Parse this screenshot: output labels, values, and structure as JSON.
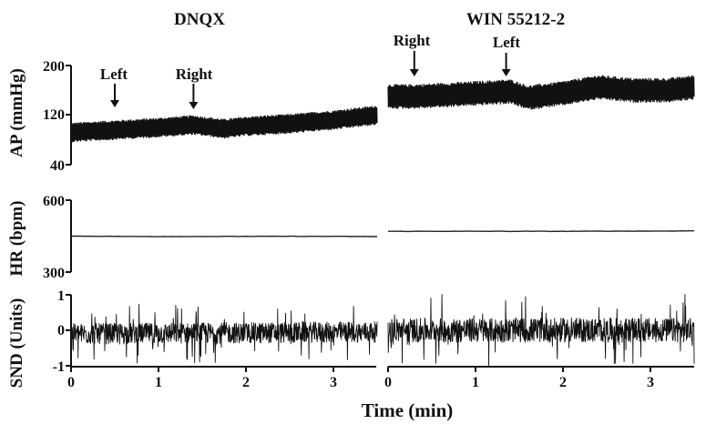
{
  "chart_data": {
    "type": "line",
    "xlabel": "Time (min)",
    "xlim": [
      0,
      3.5
    ],
    "x_ticks": [
      "0",
      "1",
      "2",
      "3"
    ],
    "columns": [
      {
        "title": "DNQX"
      },
      {
        "title": "WIN 55212-2"
      }
    ],
    "rows": [
      {
        "ylabel": "AP (mmHg)",
        "ylim": [
          40,
          200
        ],
        "y_ticks": [
          "200",
          "120",
          "40"
        ]
      },
      {
        "ylabel": "HR (bpm)",
        "ylim": [
          300,
          600
        ],
        "y_ticks": [
          "600",
          "300"
        ]
      },
      {
        "ylabel": "SND (Units)",
        "ylim": [
          -1,
          1.1
        ],
        "y_ticks": [
          "1",
          "0",
          "-1"
        ]
      }
    ],
    "series": [
      {
        "panel": "AP / DNQX",
        "x": [
          0,
          0.5,
          1.0,
          1.4,
          1.75,
          2.0,
          2.5,
          3.0,
          3.5
        ],
        "mean": [
          92,
          96,
          100,
          104,
          98,
          102,
          106,
          112,
          120
        ],
        "band": 16
      },
      {
        "panel": "AP / WIN 55212-2",
        "x": [
          0,
          0.3,
          0.6,
          1.0,
          1.4,
          1.6,
          2.0,
          2.4,
          2.8,
          3.2,
          3.5
        ],
        "mean": [
          150,
          150,
          152,
          155,
          158,
          148,
          155,
          165,
          160,
          160,
          165
        ],
        "band": 20
      },
      {
        "panel": "HR / DNQX",
        "x": [
          0,
          1,
          2,
          3,
          3.5
        ],
        "values": [
          450,
          448,
          449,
          449,
          448
        ]
      },
      {
        "panel": "HR / WIN 55212-2",
        "x": [
          0,
          1,
          2,
          3,
          3.5
        ],
        "values": [
          470,
          470,
          470,
          471,
          472
        ]
      },
      {
        "panel": "SND / DNQX",
        "x": [
          0,
          3.5
        ],
        "mean": [
          -0.1,
          -0.05
        ],
        "spread": [
          0.3,
          0.85
        ]
      },
      {
        "panel": "SND / WIN 55212-2",
        "x": [
          0,
          3.5
        ],
        "mean": [
          0,
          0
        ],
        "spread": [
          0.35,
          1.05
        ]
      }
    ],
    "annotations": [
      {
        "panel": "AP / DNQX",
        "text": "Left",
        "x": 0.5
      },
      {
        "panel": "AP / DNQX",
        "text": "Right",
        "x": 1.4
      },
      {
        "panel": "AP / WIN 55212-2",
        "text": "Right",
        "x": 0.3
      },
      {
        "panel": "AP / WIN 55212-2",
        "text": "Left",
        "x": 1.35
      }
    ]
  }
}
